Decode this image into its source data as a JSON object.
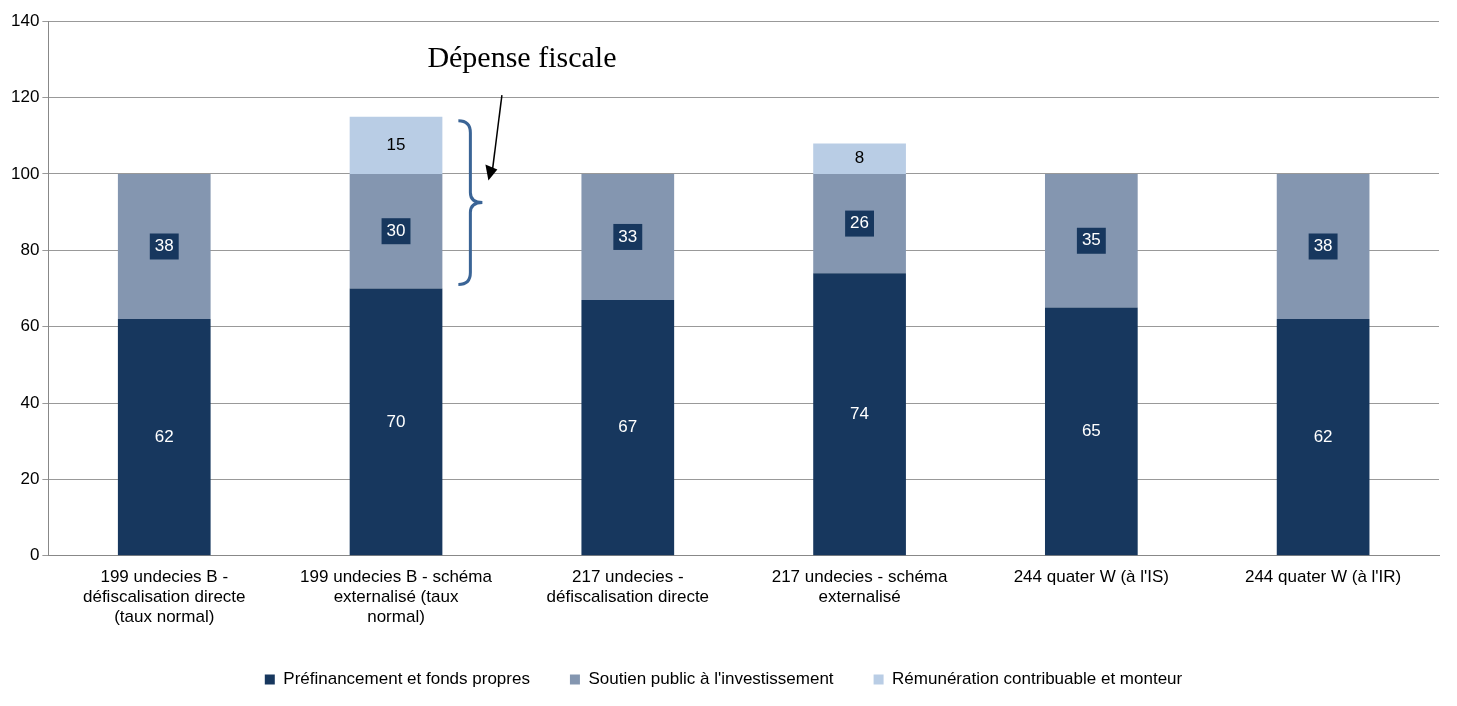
{
  "chart_data": {
    "type": "bar",
    "stacked": true,
    "categories": [
      "199 undecies B - défiscalisation directe (taux normal)",
      "199 undecies B - schéma externalisé (taux normal)",
      "217 undecies - défiscalisation directe",
      "217 undecies - schéma externalisé",
      "244 quater W (à l'IS)",
      "244 quater W (à l'IR)"
    ],
    "series": [
      {
        "name": "Préfinancement et fonds propres",
        "color": "#17375e",
        "values": [
          62,
          70,
          67,
          74,
          65,
          62
        ]
      },
      {
        "name": "Soutien public à l'investissement",
        "color": "#8496b0",
        "values": [
          38,
          30,
          33,
          26,
          35,
          38
        ]
      },
      {
        "name": "Rémunération contribuable et monteur",
        "color": "#b9cde5",
        "values": [
          null,
          15,
          null,
          8,
          null,
          null
        ]
      }
    ],
    "ylim": [
      0,
      140
    ],
    "yticks": [
      0,
      20,
      40,
      60,
      80,
      100,
      120,
      140
    ],
    "grid": "y",
    "legend": "bottom",
    "data_labels": true,
    "annotations": [
      "Dépense fiscale"
    ]
  }
}
